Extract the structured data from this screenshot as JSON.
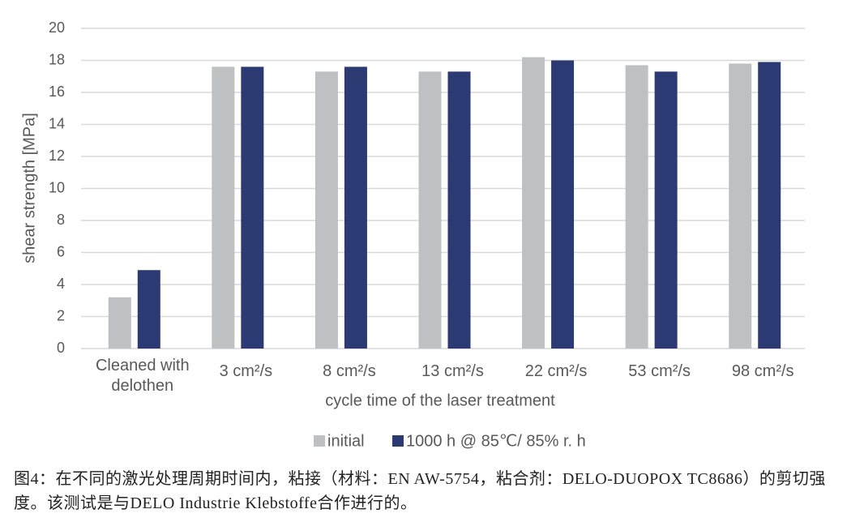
{
  "chart_data": {
    "type": "bar",
    "x_label": "cycle time of the laser treatment",
    "y_label": "shear strength [MPa]",
    "categories": [
      "Cleaned with delothen",
      "3 cm²/s",
      "8 cm²/s",
      "13 cm²/s",
      "22 cm²/s",
      "53 cm²/s",
      "98 cm²/s"
    ],
    "series": [
      {
        "name": "initial",
        "color": "#bfc0c2",
        "values": [
          3.2,
          17.6,
          17.3,
          17.3,
          18.2,
          17.7,
          17.8
        ]
      },
      {
        "name": "1000 h @ 85℃/ 85% r. h",
        "color": "#2b3a72",
        "values": [
          4.9,
          17.6,
          17.6,
          17.3,
          18.0,
          17.3,
          17.9
        ]
      }
    ],
    "ylim": [
      0,
      20
    ],
    "yticks": [
      0,
      2,
      4,
      6,
      8,
      10,
      12,
      14,
      16,
      18,
      20
    ],
    "grid": true,
    "caption": "图4：在不同的激光处理周期时间内，粘接（材料：EN AW-5754，粘合剂：DELO-DUOPOX TC8686）的剪切强度。该测试是与DELO Industrie Klebstoffe合作进行的。"
  }
}
